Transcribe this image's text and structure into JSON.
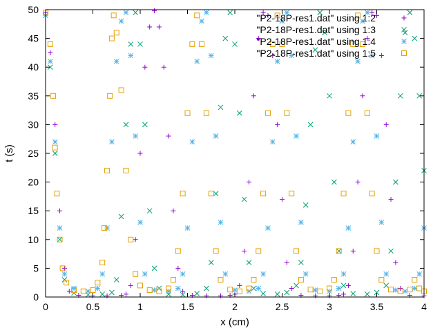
{
  "chart_data": {
    "type": "scatter",
    "xlabel": "x (cm)",
    "ylabel": "t (s)",
    "xlim": [
      0,
      4
    ],
    "ylim": [
      0,
      50
    ],
    "xticks": [
      0,
      0.5,
      1,
      1.5,
      2,
      2.5,
      3,
      3.5,
      4
    ],
    "xtick_labels": [
      "0",
      "0.5",
      "1",
      "1.5",
      "2",
      "2.5",
      "3",
      "3.5",
      "4"
    ],
    "yticks": [
      0,
      5,
      10,
      15,
      20,
      25,
      30,
      35,
      40,
      45,
      50
    ],
    "ytick_labels": [
      "0",
      "5",
      "10",
      "15",
      "20",
      "25",
      "30",
      "35",
      "40",
      "45",
      "50"
    ],
    "grid": false,
    "legend_position": "top-right",
    "series": [
      {
        "name": "\"P2-18P-res1.dat\" using 1:2",
        "marker": "plus",
        "color": "#9400d3",
        "points": [
          [
            0.0,
            49.5
          ],
          [
            0.05,
            42.5
          ],
          [
            0.1,
            30.0
          ],
          [
            0.15,
            15.0
          ],
          [
            0.2,
            5.0
          ],
          [
            0.25,
            1.0
          ],
          [
            0.35,
            0.3
          ],
          [
            0.5,
            0.2
          ],
          [
            0.65,
            0.2
          ],
          [
            0.8,
            0.3
          ],
          [
            0.85,
            0.5
          ],
          [
            0.9,
            2.0
          ],
          [
            0.95,
            10.0
          ],
          [
            1.0,
            25.0
          ],
          [
            1.05,
            40.0
          ],
          [
            1.1,
            47.0
          ],
          [
            1.15,
            49.8
          ],
          [
            1.2,
            47.0
          ],
          [
            1.25,
            40.0
          ],
          [
            1.3,
            28.0
          ],
          [
            1.35,
            15.0
          ],
          [
            1.4,
            5.0
          ],
          [
            1.45,
            1.0
          ],
          [
            1.55,
            0.3
          ],
          [
            1.7,
            0.2
          ],
          [
            1.85,
            0.2
          ],
          [
            1.95,
            0.3
          ],
          [
            2.0,
            0.5
          ],
          [
            2.05,
            2.0
          ],
          [
            2.1,
            8.0
          ],
          [
            2.15,
            20.0
          ],
          [
            2.2,
            35.0
          ],
          [
            2.25,
            45.0
          ],
          [
            2.3,
            49.5
          ],
          [
            2.35,
            49.0
          ],
          [
            2.4,
            42.0
          ],
          [
            2.45,
            30.0
          ],
          [
            2.5,
            17.0
          ],
          [
            2.55,
            6.0
          ],
          [
            2.6,
            1.5
          ],
          [
            2.7,
            0.3
          ],
          [
            2.85,
            0.2
          ],
          [
            3.0,
            0.2
          ],
          [
            3.1,
            0.3
          ],
          [
            3.15,
            0.5
          ],
          [
            3.2,
            2.0
          ],
          [
            3.25,
            8.0
          ],
          [
            3.3,
            20.0
          ],
          [
            3.35,
            35.0
          ],
          [
            3.4,
            45.0
          ],
          [
            3.45,
            49.5
          ],
          [
            3.5,
            49.0
          ],
          [
            3.55,
            42.0
          ],
          [
            3.6,
            30.0
          ],
          [
            3.65,
            17.0
          ],
          [
            3.7,
            6.0
          ],
          [
            3.75,
            1.5
          ],
          [
            3.85,
            0.3
          ],
          [
            4.0,
            0.2
          ]
        ]
      },
      {
        "name": "\"P2-18P-res1.dat\" using 1:3",
        "marker": "cross",
        "color": "#009e73",
        "points": [
          [
            0.0,
            49.0
          ],
          [
            0.05,
            40.0
          ],
          [
            0.1,
            25.0
          ],
          [
            0.15,
            10.0
          ],
          [
            0.2,
            3.0
          ],
          [
            0.3,
            0.7
          ],
          [
            0.45,
            0.4
          ],
          [
            0.6,
            0.5
          ],
          [
            0.7,
            0.8
          ],
          [
            0.75,
            3.0
          ],
          [
            0.8,
            14.0
          ],
          [
            0.85,
            30.0
          ],
          [
            0.9,
            44.0
          ],
          [
            0.95,
            49.5
          ],
          [
            1.0,
            44.0
          ],
          [
            1.05,
            30.0
          ],
          [
            1.1,
            15.0
          ],
          [
            1.15,
            5.0
          ],
          [
            1.2,
            1.5
          ],
          [
            1.3,
            0.5
          ],
          [
            1.45,
            0.4
          ],
          [
            1.6,
            0.6
          ],
          [
            1.7,
            1.5
          ],
          [
            1.75,
            6.0
          ],
          [
            1.8,
            18.0
          ],
          [
            1.85,
            33.0
          ],
          [
            1.9,
            45.0
          ],
          [
            1.95,
            49.5
          ],
          [
            2.0,
            44.0
          ],
          [
            2.05,
            32.0
          ],
          [
            2.1,
            17.0
          ],
          [
            2.15,
            6.0
          ],
          [
            2.2,
            1.5
          ],
          [
            2.3,
            0.6
          ],
          [
            2.45,
            0.5
          ],
          [
            2.55,
            0.8
          ],
          [
            2.65,
            2.0
          ],
          [
            2.7,
            6.0
          ],
          [
            2.75,
            16.0
          ],
          [
            2.8,
            30.0
          ],
          [
            2.85,
            43.0
          ],
          [
            2.9,
            49.5
          ],
          [
            2.95,
            46.0
          ],
          [
            3.0,
            35.0
          ],
          [
            3.05,
            20.0
          ],
          [
            3.1,
            8.0
          ],
          [
            3.15,
            2.0
          ],
          [
            3.25,
            0.6
          ],
          [
            3.4,
            0.5
          ],
          [
            3.5,
            0.8
          ],
          [
            3.6,
            2.0
          ],
          [
            3.65,
            8.0
          ],
          [
            3.7,
            20.0
          ],
          [
            3.75,
            35.0
          ],
          [
            3.8,
            46.0
          ],
          [
            3.85,
            49.5
          ],
          [
            3.9,
            45.0
          ],
          [
            3.95,
            35.0
          ],
          [
            4.0,
            22.0
          ]
        ]
      },
      {
        "name": "\"P2-18P-res1.dat\" using 1:4",
        "marker": "asterisk",
        "color": "#56b4e9",
        "points": [
          [
            0.0,
            49.0
          ],
          [
            0.05,
            41.0
          ],
          [
            0.1,
            27.0
          ],
          [
            0.15,
            12.0
          ],
          [
            0.2,
            4.0
          ],
          [
            0.3,
            1.5
          ],
          [
            0.45,
            1.0
          ],
          [
            0.55,
            1.5
          ],
          [
            0.6,
            4.0
          ],
          [
            0.65,
            12.0
          ],
          [
            0.7,
            27.0
          ],
          [
            0.75,
            41.0
          ],
          [
            0.8,
            48.0
          ],
          [
            0.85,
            49.5
          ],
          [
            0.9,
            42.0
          ],
          [
            0.95,
            28.0
          ],
          [
            1.0,
            13.0
          ],
          [
            1.05,
            4.0
          ],
          [
            1.15,
            1.2
          ],
          [
            1.3,
            1.0
          ],
          [
            1.4,
            1.5
          ],
          [
            1.45,
            4.0
          ],
          [
            1.5,
            12.0
          ],
          [
            1.55,
            27.0
          ],
          [
            1.6,
            41.0
          ],
          [
            1.65,
            48.0
          ],
          [
            1.7,
            49.5
          ],
          [
            1.75,
            42.0
          ],
          [
            1.8,
            28.0
          ],
          [
            1.85,
            13.0
          ],
          [
            1.9,
            4.0
          ],
          [
            2.0,
            1.2
          ],
          [
            2.15,
            1.0
          ],
          [
            2.25,
            1.5
          ],
          [
            2.3,
            4.0
          ],
          [
            2.35,
            12.0
          ],
          [
            2.4,
            27.0
          ],
          [
            2.45,
            41.0
          ],
          [
            2.5,
            48.0
          ],
          [
            2.55,
            49.5
          ],
          [
            2.6,
            42.0
          ],
          [
            2.65,
            28.0
          ],
          [
            2.7,
            13.0
          ],
          [
            2.75,
            4.0
          ],
          [
            2.85,
            1.2
          ],
          [
            3.0,
            1.0
          ],
          [
            3.1,
            1.5
          ],
          [
            3.15,
            4.0
          ],
          [
            3.2,
            12.0
          ],
          [
            3.25,
            27.0
          ],
          [
            3.3,
            41.0
          ],
          [
            3.35,
            48.0
          ],
          [
            3.4,
            49.5
          ],
          [
            3.45,
            42.0
          ],
          [
            3.5,
            28.0
          ],
          [
            3.55,
            13.0
          ],
          [
            3.6,
            4.0
          ],
          [
            3.7,
            1.2
          ],
          [
            3.8,
            1.0
          ],
          [
            3.9,
            1.5
          ],
          [
            3.95,
            4.0
          ],
          [
            4.0,
            12.0
          ]
        ]
      },
      {
        "name": "\"P2-18P-res1.dat\" using 1:5",
        "marker": "square",
        "color": "#e69f00",
        "points": [
          [
            0.0,
            49.5
          ],
          [
            0.05,
            44.0
          ],
          [
            0.08,
            35.0
          ],
          [
            0.1,
            26.0
          ],
          [
            0.12,
            18.0
          ],
          [
            0.15,
            10.0
          ],
          [
            0.18,
            5.0
          ],
          [
            0.22,
            2.5
          ],
          [
            0.3,
            1.2
          ],
          [
            0.4,
            1.0
          ],
          [
            0.5,
            1.2
          ],
          [
            0.55,
            2.5
          ],
          [
            0.6,
            6.0
          ],
          [
            0.62,
            12.0
          ],
          [
            0.65,
            22.0
          ],
          [
            0.68,
            35.0
          ],
          [
            0.7,
            45.0
          ],
          [
            0.72,
            49.0
          ],
          [
            0.75,
            46.0
          ],
          [
            0.8,
            36.0
          ],
          [
            0.85,
            22.0
          ],
          [
            0.9,
            10.0
          ],
          [
            0.95,
            4.0
          ],
          [
            1.0,
            2.0
          ],
          [
            1.1,
            1.2
          ],
          [
            1.2,
            1.0
          ],
          [
            1.3,
            1.5
          ],
          [
            1.35,
            3.0
          ],
          [
            1.4,
            8.0
          ],
          [
            1.45,
            18.0
          ],
          [
            1.5,
            32.0
          ],
          [
            1.55,
            44.0
          ],
          [
            1.6,
            49.0
          ],
          [
            1.65,
            44.0
          ],
          [
            1.7,
            32.0
          ],
          [
            1.75,
            18.0
          ],
          [
            1.8,
            8.0
          ],
          [
            1.85,
            3.0
          ],
          [
            1.95,
            1.3
          ],
          [
            2.05,
            1.0
          ],
          [
            2.15,
            1.5
          ],
          [
            2.2,
            3.0
          ],
          [
            2.25,
            8.0
          ],
          [
            2.3,
            18.0
          ],
          [
            2.35,
            32.0
          ],
          [
            2.4,
            44.0
          ],
          [
            2.45,
            49.0
          ],
          [
            2.5,
            44.0
          ],
          [
            2.55,
            32.0
          ],
          [
            2.6,
            18.0
          ],
          [
            2.65,
            8.0
          ],
          [
            2.7,
            3.0
          ],
          [
            2.8,
            1.3
          ],
          [
            2.9,
            1.0
          ],
          [
            3.0,
            1.5
          ],
          [
            3.05,
            3.0
          ],
          [
            3.1,
            8.0
          ],
          [
            3.15,
            18.0
          ],
          [
            3.2,
            32.0
          ],
          [
            3.25,
            44.0
          ],
          [
            3.3,
            49.0
          ],
          [
            3.35,
            44.0
          ],
          [
            3.4,
            32.0
          ],
          [
            3.45,
            18.0
          ],
          [
            3.5,
            8.0
          ],
          [
            3.55,
            3.0
          ],
          [
            3.65,
            1.3
          ],
          [
            3.75,
            1.0
          ],
          [
            3.85,
            1.3
          ],
          [
            3.9,
            3.0
          ],
          [
            3.95,
            1.5
          ],
          [
            4.0,
            1.0
          ]
        ]
      }
    ]
  }
}
